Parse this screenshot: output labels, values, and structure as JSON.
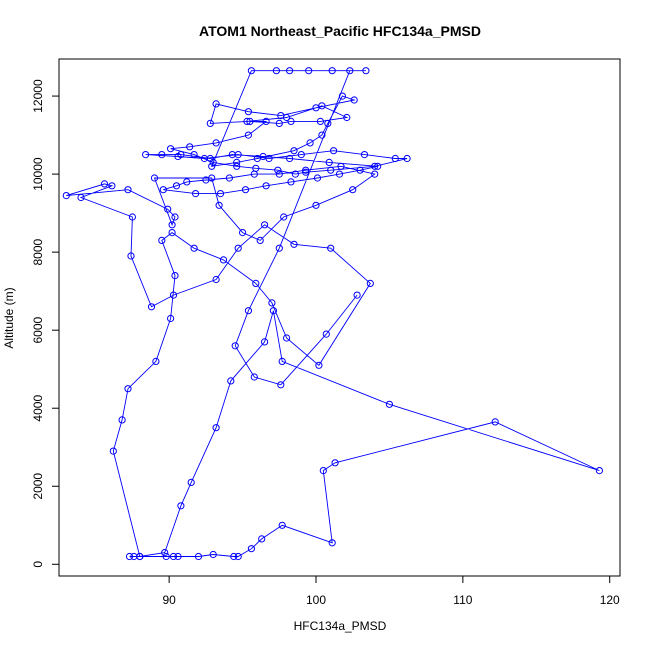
{
  "chart_data": {
    "type": "scatter",
    "title": "ATOM1 Northeast_Pacific HFC134a_PMSD",
    "xlabel": "HFC134a_PMSD",
    "ylabel": "Altitude (m)",
    "xlim": [
      82.5,
      120.7
    ],
    "ylim": [
      -300,
      12950
    ],
    "xticks": [
      90,
      100,
      110,
      120
    ],
    "yticks": [
      0,
      2000,
      4000,
      6000,
      8000,
      10000,
      12000
    ],
    "color": "#0000ff",
    "marker": "open-circle",
    "connected": true,
    "grid": false,
    "legend": "none",
    "x": [
      87.3,
      87.6,
      88.0,
      89.8,
      90.3,
      90.6,
      92.0,
      93.0,
      94.4,
      94.7,
      95.6,
      96.3,
      97.7,
      101.1,
      100.5,
      101.3,
      112.2,
      119.3,
      105.0,
      97.7,
      97.1,
      96.5,
      94.2,
      93.2,
      91.5,
      90.8,
      89.7,
      88.0,
      86.2,
      86.8,
      87.2,
      89.1,
      90.1,
      90.4,
      89.5,
      90.2,
      91.7,
      93.7,
      95.9,
      97.0,
      98.0,
      100.2,
      103.7,
      101.0,
      98.5,
      96.5,
      94.7,
      93.2,
      90.3,
      88.8,
      87.4,
      87.5,
      84.0,
      86.1,
      85.6,
      83.0,
      87.2,
      89.9,
      90.4,
      90.2,
      89.0,
      92.9,
      93.4,
      95.0,
      96.2,
      97.8,
      100.0,
      102.5,
      104.0,
      101.7,
      99.3,
      97.5,
      95.8,
      94.1,
      92.5,
      91.2,
      90.5,
      89.6,
      91.8,
      93.5,
      95.2,
      96.6,
      98.3,
      100.1,
      101.6,
      103.0,
      104.2,
      100.9,
      98.2,
      96.4,
      94.3,
      92.8,
      90.8,
      89.5,
      88.4,
      90.6,
      92.4,
      94.7,
      96.8,
      99.0,
      101.2,
      103.3,
      105.4,
      106.2,
      104.0,
      101.0,
      99.3,
      98.6,
      97.4,
      95.9,
      94.6,
      93.0,
      91.7,
      90.1,
      91.4,
      93.2,
      95.4,
      96.6,
      95.5,
      97.5,
      98.3,
      100.3,
      102.1,
      100.4,
      98.0,
      95.3,
      92.8,
      93.2,
      95.4,
      97.6,
      100.0,
      102.6,
      101.8,
      100.8,
      100.4,
      99.6,
      98.5,
      96.0,
      94.6,
      92.9,
      95.6,
      97.3,
      98.2,
      99.5,
      101.1,
      103.4,
      102.3,
      97.5,
      95.4,
      94.5,
      95.8,
      97.6,
      100.7,
      102.8
    ],
    "y": [
      200,
      200,
      200,
      200,
      200,
      200,
      200,
      250,
      200,
      200,
      400,
      650,
      1000,
      550,
      2400,
      2600,
      3650,
      2400,
      4100,
      5200,
      6500,
      5700,
      4700,
      3500,
      2100,
      1500,
      300,
      200,
      2900,
      3700,
      4500,
      5200,
      6300,
      7400,
      8300,
      8500,
      8100,
      7800,
      7200,
      6700,
      5800,
      5100,
      7200,
      8100,
      8200,
      8700,
      8100,
      7300,
      6900,
      6600,
      7900,
      8900,
      9400,
      9700,
      9750,
      9450,
      9600,
      9100,
      8900,
      8700,
      9900,
      9900,
      9200,
      8500,
      8300,
      8900,
      9200,
      9600,
      10000,
      10200,
      10100,
      10000,
      10000,
      9900,
      9850,
      9800,
      9700,
      9600,
      9500,
      9500,
      9600,
      9700,
      9800,
      9900,
      10000,
      10100,
      10200,
      10300,
      10400,
      10450,
      10500,
      10400,
      10500,
      10500,
      10500,
      10450,
      10400,
      10500,
      10400,
      10500,
      10600,
      10500,
      10400,
      10400,
      10200,
      10100,
      10050,
      10000,
      10100,
      10150,
      10200,
      10300,
      10500,
      10650,
      10700,
      10800,
      11000,
      11350,
      11350,
      11300,
      11350,
      11350,
      11450,
      11750,
      11450,
      11350,
      11300,
      11800,
      11600,
      11500,
      11700,
      11900,
      12000,
      11300,
      11000,
      10800,
      10600,
      10400,
      10300,
      10200,
      12650,
      12650,
      12650,
      12650,
      12650,
      12650,
      12650,
      8100,
      6500,
      5600,
      4800,
      4600,
      5900,
      6900
    ]
  }
}
